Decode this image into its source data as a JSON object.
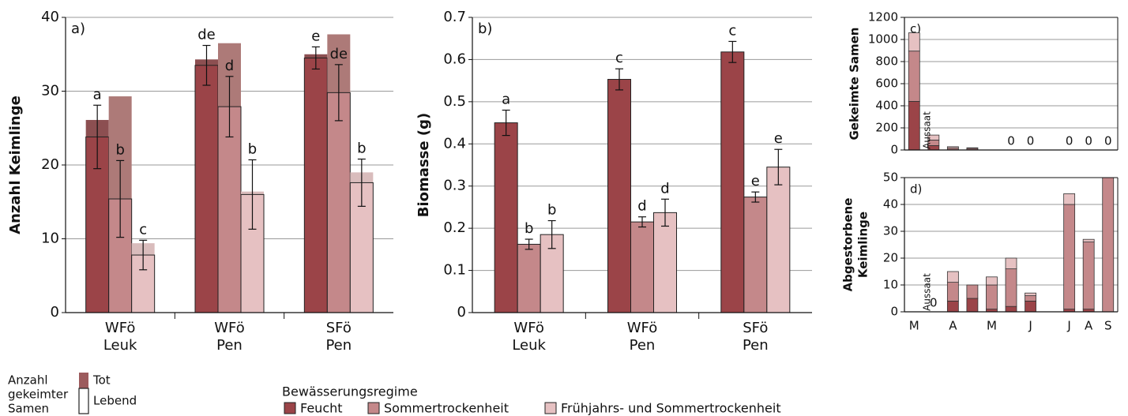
{
  "legend": {
    "title": "Bewässerungsregime",
    "germ_title": [
      "Anzahl",
      "gekeimter",
      "Samen"
    ],
    "germ_items": [
      "Tot",
      "Lebend"
    ],
    "germ_color": "#9c5b5d"
  },
  "chart_data": [
    {
      "type": "bar",
      "panel": "a)",
      "ylabel": [
        "Anzahl Keimlinge"
      ],
      "categories": [
        [
          "WFö",
          "Leuk"
        ],
        [
          "WFö",
          "Pen"
        ],
        [
          "SFö",
          "Pen"
        ]
      ],
      "ylim": [
        0,
        40
      ],
      "yticks": [
        0,
        10,
        20,
        30,
        40
      ],
      "grid": true,
      "series": [
        {
          "name": "Feucht",
          "color": "#9b4448",
          "tot_color": "#8c4f51",
          "values": [
            23.8,
            33.5,
            34.5
          ],
          "errors": [
            4.3,
            2.7,
            1.5
          ],
          "tot": [
            2.3,
            0.8,
            0.5
          ],
          "letters": [
            "a",
            "de",
            "e"
          ]
        },
        {
          "name": "Sommertrockenheit",
          "color": "#c4888a",
          "tot_color": "#ad7a78",
          "values": [
            15.4,
            27.9,
            29.8
          ],
          "errors": [
            5.2,
            4.1,
            3.8
          ],
          "tot": [
            13.9,
            8.6,
            7.9
          ],
          "letters": [
            "b",
            "d",
            "de"
          ]
        },
        {
          "name": "Frühjahrs- und Sommertrockenheit",
          "color": "#e6c1c2",
          "tot_color": "#d9bcbc",
          "values": [
            7.8,
            16.0,
            17.6
          ],
          "errors": [
            2.0,
            4.7,
            3.2
          ],
          "tot": [
            1.6,
            0.4,
            1.4
          ],
          "letters": [
            "c",
            "b",
            "b"
          ]
        }
      ]
    },
    {
      "type": "bar",
      "panel": "b)",
      "ylabel": [
        "Biomasse (g)"
      ],
      "categories": [
        [
          "WFö",
          "Leuk"
        ],
        [
          "WFö",
          "Pen"
        ],
        [
          "SFö",
          "Pen"
        ]
      ],
      "ylim": [
        0,
        0.7
      ],
      "yticks": [
        0,
        0.1,
        0.2,
        0.3,
        0.4,
        0.5,
        0.6,
        0.7
      ],
      "grid": true,
      "series": [
        {
          "color": "#9b4448",
          "values": [
            0.45,
            0.553,
            0.618
          ],
          "errors": [
            0.03,
            0.025,
            0.025
          ],
          "letters": [
            "a",
            "c",
            "c"
          ]
        },
        {
          "color": "#c4888a",
          "values": [
            0.162,
            0.215,
            0.274
          ],
          "errors": [
            0.012,
            0.012,
            0.012
          ],
          "letters": [
            "b",
            "d",
            "e"
          ]
        },
        {
          "color": "#e6c1c2",
          "values": [
            0.185,
            0.237,
            0.345
          ],
          "errors": [
            0.033,
            0.032,
            0.042
          ],
          "letters": [
            "b",
            "d",
            "e"
          ]
        }
      ]
    },
    {
      "type": "bar",
      "stacked": true,
      "panel": "c)",
      "ylabel": [
        "Gekeimte Samen"
      ],
      "annotation": "Aussaat",
      "ylim": [
        0,
        1200
      ],
      "yticks": [
        0,
        200,
        400,
        600,
        800,
        1000,
        1200
      ],
      "grid": true,
      "printed_totals": [
        null,
        null,
        null,
        null,
        null,
        0,
        0,
        null,
        0,
        0,
        0
      ],
      "series": [
        {
          "color": "#9b4448",
          "values": [
            440,
            40,
            3,
            2,
            null,
            0,
            0,
            null,
            0,
            0,
            0
          ]
        },
        {
          "color": "#c4888a",
          "values": [
            455,
            50,
            15,
            12,
            null,
            0,
            0,
            null,
            0,
            0,
            0
          ]
        },
        {
          "color": "#e6c1c2",
          "values": [
            165,
            45,
            12,
            6,
            null,
            0,
            0,
            null,
            0,
            0,
            0
          ]
        }
      ]
    },
    {
      "type": "bar",
      "stacked": true,
      "panel": "d)",
      "ylabel": [
        "Abgestorbene",
        "Keimlinge"
      ],
      "annotation": "Aussaat",
      "categories": [
        "M",
        null,
        "A",
        null,
        "M",
        null,
        "J",
        null,
        "J",
        "A",
        "S"
      ],
      "ylim": [
        0,
        50
      ],
      "yticks": [
        0,
        10,
        20,
        30,
        40,
        50
      ],
      "grid": true,
      "printed_totals": [
        null,
        0,
        null,
        null,
        null,
        null,
        null,
        null,
        null,
        null,
        null
      ],
      "series": [
        {
          "color": "#9b4448",
          "values": [
            null,
            0,
            4,
            5,
            1,
            2,
            4,
            null,
            1,
            1,
            0
          ]
        },
        {
          "color": "#c4888a",
          "values": [
            null,
            0,
            7,
            5,
            9,
            14,
            2,
            null,
            39,
            25,
            50
          ]
        },
        {
          "color": "#e6c1c2",
          "values": [
            null,
            0,
            4,
            0,
            3,
            4,
            1,
            null,
            4,
            1,
            0
          ]
        }
      ]
    }
  ]
}
